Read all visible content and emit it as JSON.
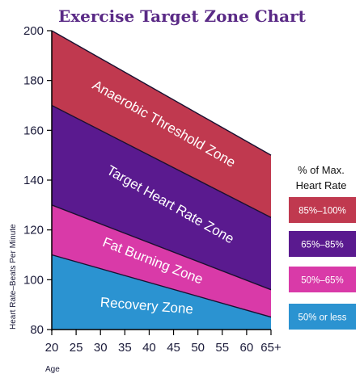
{
  "chart_data": {
    "type": "area",
    "title": "Exercise Target Zone Chart",
    "xlabel": "Age",
    "ylabel": "Heart Rate–Beats Per Minute",
    "x_ticks": [
      "20",
      "25",
      "30",
      "35",
      "40",
      "45",
      "50",
      "55",
      "60",
      "65+"
    ],
    "y_ticks": [
      "80",
      "100",
      "120",
      "140",
      "160",
      "180",
      "200"
    ],
    "xlim": [
      20,
      65
    ],
    "ylim": [
      80,
      200
    ],
    "boundaries": {
      "max_heart_rate": [
        200,
        150
      ],
      "pct_85": [
        170,
        125
      ],
      "pct_65": [
        130,
        96
      ],
      "pct_50": [
        110,
        85
      ]
    },
    "zones": [
      {
        "name": "Anaerobic Threshold Zone",
        "range": "85%–100%",
        "color": "#c0394f",
        "start": [
          170,
          200
        ],
        "end": [
          125,
          150
        ]
      },
      {
        "name": "Target Heart Rate Zone",
        "range": "65%–85%",
        "color": "#5a1a8f",
        "start": [
          130,
          170
        ],
        "end": [
          96,
          125
        ]
      },
      {
        "name": "Fat Burning Zone",
        "range": "50%–65%",
        "color": "#d93aa8",
        "start": [
          110,
          130
        ],
        "end": [
          85,
          96
        ]
      },
      {
        "name": "Recovery Zone",
        "range": "50% or less",
        "color": "#2b93d1",
        "start": [
          80,
          110
        ],
        "end": [
          80,
          85
        ]
      }
    ],
    "legend_title": [
      "% of Max.",
      "Heart Rate"
    ],
    "legend_placement": "right"
  }
}
